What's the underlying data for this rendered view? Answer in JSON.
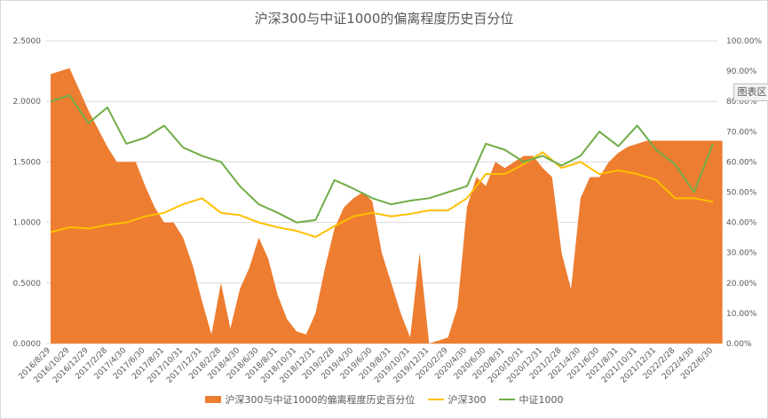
{
  "chart_data": {
    "type": "area+line",
    "title": "沪深300与中证1000的偏离程度历史百分位",
    "y_left": {
      "min": 0,
      "max": 2.5,
      "step": 0.5,
      "ticks": [
        "0.0000",
        "0.5000",
        "1.0000",
        "1.5000",
        "2.0000",
        "2.5000"
      ]
    },
    "y_right": {
      "min": 0,
      "max": 1.0,
      "ticks": [
        "0.00%",
        "10.00%",
        "20.00%",
        "30.00%",
        "40.00%",
        "50.00%",
        "60.00%",
        "70.00%",
        "80.00%",
        "90.00%",
        "100.00%"
      ]
    },
    "x_ticks": [
      "2016/8/29",
      "2016/10/29",
      "2016/12/29",
      "2017/2/28",
      "2017/4/30",
      "2017/6/30",
      "2017/8/31",
      "2017/10/31",
      "2017/12/31",
      "2018/2/28",
      "2018/4/30",
      "2018/6/30",
      "2018/8/31",
      "2018/10/31",
      "2018/12/31",
      "2019/2/28",
      "2019/4/30",
      "2019/6/30",
      "2019/8/31",
      "2019/10/31",
      "2019/12/31",
      "2020/2/29",
      "2020/4/30",
      "2020/6/30",
      "2020/8/31",
      "2020/10/31",
      "2020/12/31",
      "2021/2/28",
      "2021/4/30",
      "2021/6/30",
      "2021/8/31",
      "2021/10/31",
      "2021/12/31",
      "2022/2/28",
      "2022/4/30",
      "2022/6/30"
    ],
    "series": [
      {
        "name": "沪深300与中证1000的偏离程度历史百分位",
        "kind": "area",
        "axis": "right",
        "color": "#ED7D31",
        "x": [
          0,
          0.5,
          1,
          1.5,
          2,
          2.5,
          3,
          3.5,
          4,
          4.5,
          5,
          5.5,
          6,
          6.5,
          7,
          7.5,
          8,
          8.5,
          9,
          9.5,
          10,
          10.5,
          11,
          11.5,
          12,
          12.5,
          13,
          13.5,
          14,
          14.5,
          15,
          15.5,
          16,
          16.5,
          17,
          17.5,
          18,
          18.5,
          19,
          19.5,
          20,
          20.5,
          21,
          21.5,
          22,
          22.5,
          23,
          23.5,
          24,
          24.5,
          25,
          25.5,
          26,
          26.5,
          27,
          27.5,
          28,
          28.5,
          29,
          29.5,
          30,
          30.5,
          31,
          31.5,
          32,
          32.5,
          33,
          33.5,
          34,
          34.5,
          35,
          35.5
        ],
        "values": [
          0.89,
          0.9,
          0.91,
          0.84,
          0.77,
          0.71,
          0.65,
          0.6,
          0.6,
          0.6,
          0.52,
          0.45,
          0.4,
          0.4,
          0.35,
          0.26,
          0.14,
          0.03,
          0.2,
          0.05,
          0.18,
          0.25,
          0.35,
          0.28,
          0.16,
          0.08,
          0.04,
          0.03,
          0.1,
          0.25,
          0.38,
          0.45,
          0.48,
          0.5,
          0.47,
          0.3,
          0.2,
          0.1,
          0.02,
          0.3,
          0.0,
          0.01,
          0.02,
          0.12,
          0.45,
          0.55,
          0.52,
          0.6,
          0.58,
          0.6,
          0.62,
          0.62,
          0.58,
          0.55,
          0.3,
          0.18,
          0.48,
          0.55,
          0.55,
          0.6,
          0.63,
          0.65,
          0.66,
          0.67,
          0.67,
          0.67,
          0.67,
          0.67,
          0.67,
          0.67,
          0.67,
          0.67
        ]
      },
      {
        "name": "沪深300",
        "kind": "line",
        "axis": "left",
        "color": "#FFC000",
        "x": [
          0,
          1,
          2,
          3,
          4,
          5,
          6,
          7,
          8,
          9,
          10,
          11,
          12,
          13,
          14,
          15,
          16,
          17,
          18,
          19,
          20,
          21,
          22,
          23,
          24,
          25,
          26,
          27,
          28,
          29,
          30,
          31,
          32,
          33,
          34,
          35
        ],
        "values": [
          0.92,
          0.96,
          0.95,
          0.98,
          1.0,
          1.05,
          1.08,
          1.15,
          1.2,
          1.08,
          1.06,
          1.0,
          0.96,
          0.93,
          0.88,
          0.97,
          1.05,
          1.08,
          1.05,
          1.07,
          1.1,
          1.1,
          1.2,
          1.4,
          1.4,
          1.48,
          1.58,
          1.45,
          1.5,
          1.4,
          1.43,
          1.4,
          1.35,
          1.2,
          1.2,
          1.17
        ]
      },
      {
        "name": "中证1000",
        "kind": "line",
        "axis": "left",
        "color": "#70AD47",
        "x": [
          0,
          1,
          2,
          3,
          4,
          5,
          6,
          7,
          8,
          9,
          10,
          11,
          12,
          13,
          14,
          15,
          16,
          17,
          18,
          19,
          20,
          21,
          22,
          23,
          24,
          25,
          26,
          27,
          28,
          29,
          30,
          31,
          32,
          33,
          34,
          35
        ],
        "values": [
          2.0,
          2.05,
          1.82,
          1.95,
          1.65,
          1.7,
          1.8,
          1.62,
          1.55,
          1.5,
          1.3,
          1.15,
          1.08,
          1.0,
          1.02,
          1.35,
          1.28,
          1.2,
          1.15,
          1.18,
          1.2,
          1.25,
          1.3,
          1.65,
          1.6,
          1.5,
          1.55,
          1.47,
          1.55,
          1.75,
          1.63,
          1.8,
          1.6,
          1.48,
          1.25,
          1.65
        ]
      }
    ]
  },
  "legend": [
    {
      "label": "沪深300与中证1000的偏离程度历史百分位",
      "color": "#ED7D31",
      "kind": "box"
    },
    {
      "label": "沪深300",
      "color": "#FFC000",
      "kind": "line"
    },
    {
      "label": "中证1000",
      "color": "#70AD47",
      "kind": "line"
    }
  ],
  "overlay_badge": "图表区"
}
